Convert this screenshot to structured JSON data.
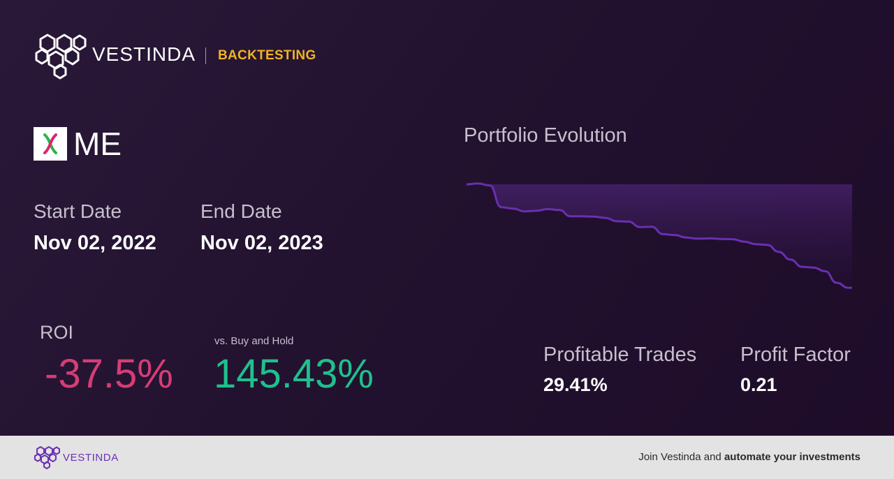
{
  "brand": {
    "name": "VESTINDA",
    "tag": "BACKTESTING",
    "tag_color": "#f0b324"
  },
  "ticker": {
    "symbol": "ME",
    "logo_icon": "double-helix-logo-icon"
  },
  "dates": {
    "start_label": "Start Date",
    "start_value": "Nov 02, 2022",
    "end_label": "End Date",
    "end_value": "Nov 02, 2023"
  },
  "roi": {
    "label": "ROI",
    "value": "-37.5%",
    "color": "#d63d74"
  },
  "buy_hold": {
    "label": "vs. Buy and Hold",
    "value": "145.43%",
    "color": "#1fc08d"
  },
  "chart": {
    "title": "Portfolio Evolution"
  },
  "metrics": {
    "profitable_label": "Profitable Trades",
    "profitable_value": "29.41%",
    "profit_factor_label": "Profit Factor",
    "profit_factor_value": "0.21"
  },
  "footer": {
    "brand": "VESTINDA",
    "cta_prefix": "Join Vestinda and ",
    "cta_bold": "automate your investments"
  },
  "chart_data": {
    "type": "area",
    "title": "Portfolio Evolution",
    "xlabel": "",
    "ylabel": "",
    "grid": false,
    "line_color": "#6a2fb0",
    "x": [
      0,
      3,
      6,
      9,
      12,
      15,
      18,
      21,
      24,
      27,
      30,
      33,
      36,
      39,
      42,
      45,
      48,
      51,
      54,
      57,
      60,
      63,
      66,
      69,
      72,
      75,
      78,
      81,
      84,
      87,
      90,
      93,
      96,
      99,
      100
    ],
    "y": [
      100.0,
      100.3,
      99.6,
      91.7,
      91.2,
      90.2,
      90.4,
      91.0,
      90.7,
      88.4,
      88.4,
      88.3,
      87.8,
      86.6,
      86.5,
      84.5,
      84.6,
      81.9,
      81.6,
      80.7,
      80.3,
      80.4,
      80.2,
      80.1,
      79.2,
      78.3,
      78.0,
      75.5,
      72.7,
      70.1,
      69.8,
      68.5,
      64.3,
      62.5,
      62.5
    ],
    "x_note_unused": null
  }
}
